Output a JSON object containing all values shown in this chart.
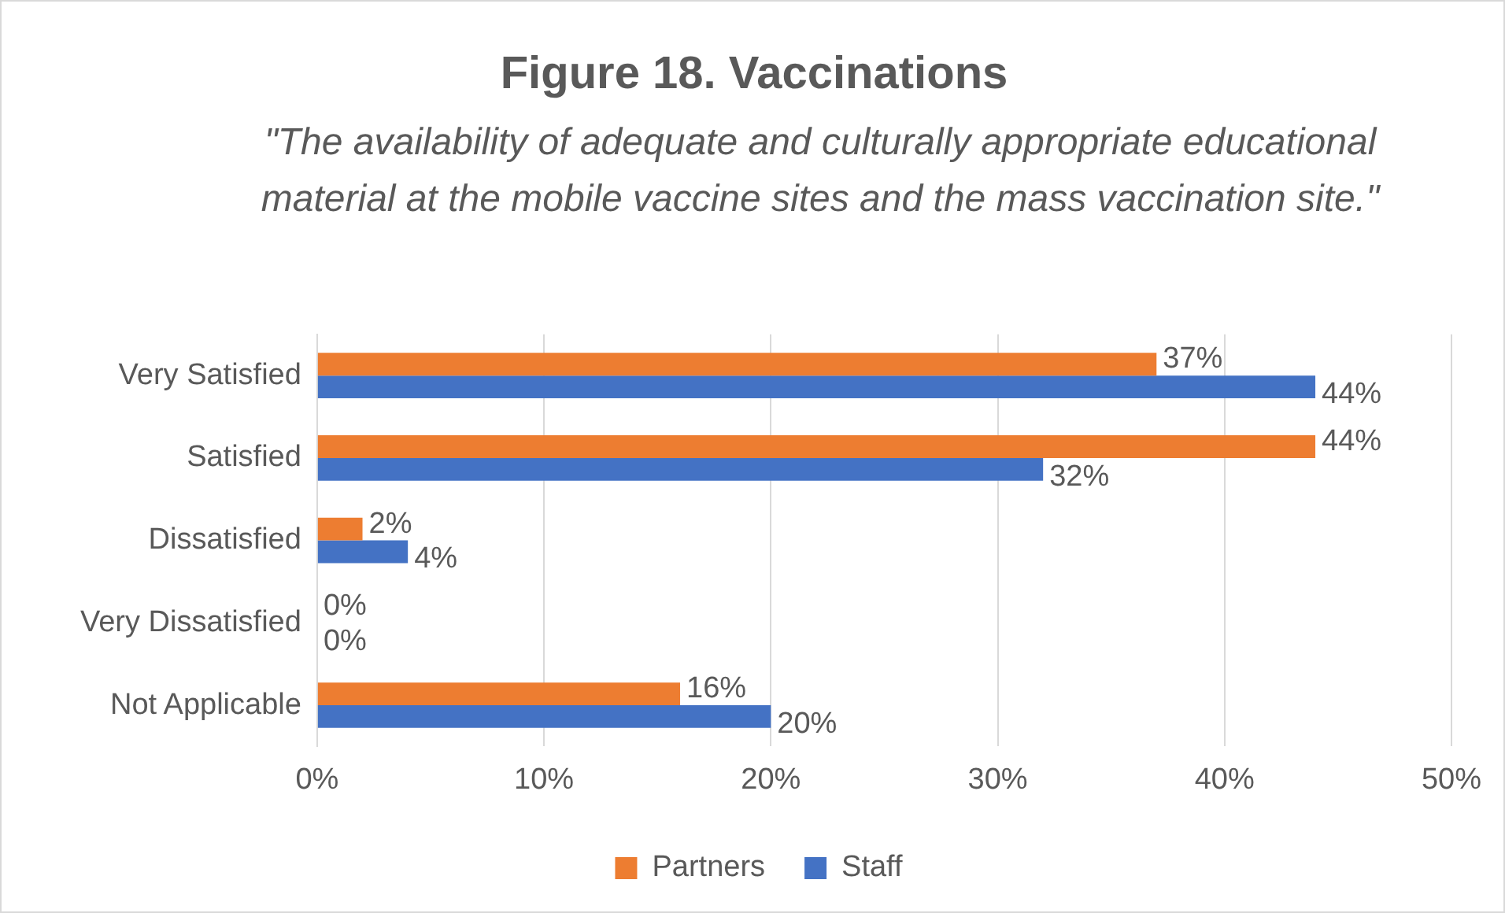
{
  "chart_data": {
    "type": "bar",
    "orientation": "horizontal",
    "title": "Figure 18. Vaccinations",
    "subtitle": "\"The availability of adequate and culturally appropriate educational material at the mobile vaccine sites and the mass vaccination site.\"",
    "categories": [
      "Very Satisfied",
      "Satisfied",
      "Dissatisfied",
      "Very Dissatisfied",
      "Not Applicable"
    ],
    "series": [
      {
        "name": "Partners",
        "color": "#ed7d31",
        "values": [
          37,
          44,
          2,
          0,
          16
        ],
        "value_labels": [
          "37%",
          "44%",
          "2%",
          "0%",
          "16%"
        ]
      },
      {
        "name": "Staff",
        "color": "#4472c4",
        "values": [
          44,
          32,
          4,
          0,
          20
        ],
        "value_labels": [
          "44%",
          "32%",
          "4%",
          "0%",
          "20%"
        ]
      }
    ],
    "xlim": [
      0,
      50
    ],
    "xticks": [
      {
        "value": 0,
        "label": "0%"
      },
      {
        "value": 10,
        "label": "10%"
      },
      {
        "value": 20,
        "label": "20%"
      },
      {
        "value": 30,
        "label": "30%"
      },
      {
        "value": 40,
        "label": "40%"
      },
      {
        "value": 50,
        "label": "50%"
      }
    ],
    "grid": "x",
    "legend": "bottom"
  }
}
